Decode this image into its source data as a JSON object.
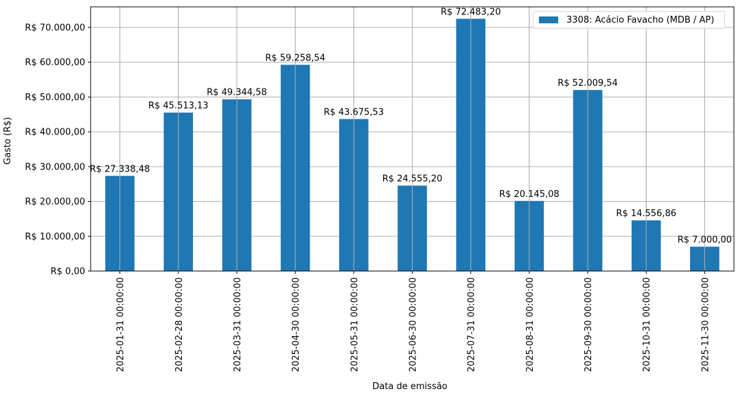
{
  "chart_data": {
    "type": "bar",
    "title": "",
    "xlabel": "Data de emissão",
    "ylabel": "Gasto (R$)",
    "ylim": [
      0,
      75900
    ],
    "grid": true,
    "legend_position": "upper right",
    "categories": [
      "2025-01-31 00:00:00",
      "2025-02-28 00:00:00",
      "2025-03-31 00:00:00",
      "2025-04-30 00:00:00",
      "2025-05-31 00:00:00",
      "2025-06-30 00:00:00",
      "2025-07-31 00:00:00",
      "2025-08-31 00:00:00",
      "2025-09-30 00:00:00",
      "2025-10-31 00:00:00",
      "2025-11-30 00:00:00"
    ],
    "series": [
      {
        "name": "3308: Acácio Favacho (MDB / AP)",
        "color": "#1f77b4",
        "values": [
          27338.48,
          45513.13,
          49344.58,
          59258.54,
          43675.53,
          24555.2,
          72483.2,
          20145.08,
          52009.54,
          14556.86,
          7000.0
        ],
        "labels": [
          "R$ 27.338,48",
          "R$ 45.513,13",
          "R$ 49.344,58",
          "R$ 59.258,54",
          "R$ 43.675,53",
          "R$ 24.555,20",
          "R$ 72.483,20",
          "R$ 20.145,08",
          "R$ 52.009,54",
          "R$ 14.556,86",
          "R$ 7.000,00"
        ]
      }
    ],
    "yticks": [
      0,
      10000,
      20000,
      30000,
      40000,
      50000,
      60000,
      70000
    ],
    "ytick_labels": [
      "R$ 0,00",
      "R$ 10.000,00",
      "R$ 20.000,00",
      "R$ 30.000,00",
      "R$ 40.000,00",
      "R$ 50.000,00",
      "R$ 60.000,00",
      "R$ 70.000,00"
    ]
  },
  "legend": {
    "label": "3308: Acácio Favacho (MDB / AP)"
  },
  "axes": {
    "xlabel": "Data de emissão",
    "ylabel": "Gasto (R$)"
  }
}
